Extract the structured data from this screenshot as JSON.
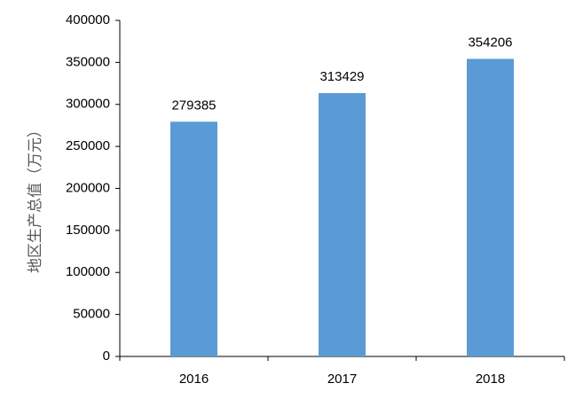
{
  "chart_data": {
    "type": "bar",
    "title": "",
    "xlabel": "",
    "ylabel": "地区生产总值（万元）",
    "categories": [
      "2016",
      "2017",
      "2018"
    ],
    "values": [
      279385,
      313429,
      354206
    ],
    "ylim": [
      0,
      400000
    ],
    "yticks": [
      0,
      50000,
      100000,
      150000,
      200000,
      250000,
      300000,
      350000,
      400000
    ],
    "grid": false,
    "legend": "none",
    "bar_color": "#5B9BD5",
    "axis_color": "#000000"
  }
}
